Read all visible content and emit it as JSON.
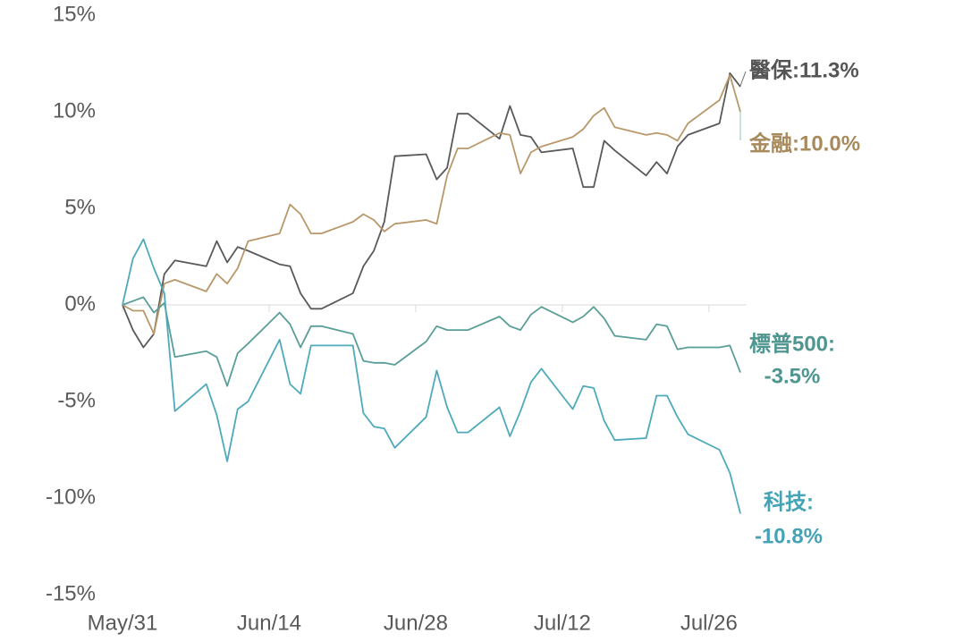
{
  "chart_data": {
    "type": "line",
    "x": [
      0,
      1,
      2,
      3,
      4,
      5,
      8,
      9,
      10,
      11,
      12,
      15,
      16,
      17,
      18,
      19,
      22,
      23,
      24,
      25,
      26,
      29,
      30,
      31,
      32,
      33,
      36,
      37,
      38,
      39,
      40,
      43,
      44,
      45,
      46,
      47,
      50,
      51,
      52,
      53,
      54,
      57,
      58,
      59
    ],
    "xlim": [
      0,
      59
    ],
    "xticks": [
      {
        "value": 0,
        "label": "May/31"
      },
      {
        "value": 14,
        "label": "Jun/14"
      },
      {
        "value": 28,
        "label": "Jun/28"
      },
      {
        "value": 42,
        "label": "Jul/12"
      },
      {
        "value": 56,
        "label": "Jul/26"
      }
    ],
    "ylim": [
      -15,
      15
    ],
    "yticks": [
      {
        "value": -15,
        "label": "-15%"
      },
      {
        "value": -10,
        "label": "-10%"
      },
      {
        "value": -5,
        "label": "-5%"
      },
      {
        "value": 0,
        "label": "0%"
      },
      {
        "value": 5,
        "label": "5%"
      },
      {
        "value": 10,
        "label": "10%"
      },
      {
        "value": 15,
        "label": "15%"
      }
    ],
    "series": [
      {
        "name": "醫保",
        "color": "#595959",
        "values": [
          0,
          -1.3,
          -2.2,
          -1.5,
          1.6,
          2.3,
          2.0,
          3.3,
          2.2,
          3.0,
          2.8,
          2.1,
          2.0,
          0.6,
          -0.2,
          -0.2,
          0.6,
          2.0,
          2.8,
          4.3,
          7.7,
          7.8,
          6.5,
          7.1,
          9.9,
          9.9,
          8.6,
          10.3,
          8.8,
          8.7,
          7.9,
          8.1,
          6.1,
          6.1,
          8.5,
          8.0,
          6.7,
          7.4,
          6.8,
          8.2,
          8.8,
          9.4,
          12.0,
          11.3
        ]
      },
      {
        "name": "金融",
        "color": "#b8986a",
        "values": [
          0,
          -0.3,
          -0.3,
          -1.5,
          1.1,
          1.3,
          0.7,
          1.6,
          1.1,
          1.9,
          3.3,
          3.7,
          5.2,
          4.7,
          3.7,
          3.7,
          4.3,
          4.7,
          4.4,
          3.8,
          4.2,
          4.4,
          4.2,
          6.7,
          8.1,
          8.1,
          8.9,
          8.8,
          6.8,
          7.9,
          8.2,
          8.7,
          9.1,
          9.8,
          10.2,
          9.2,
          8.8,
          8.9,
          8.8,
          8.5,
          9.4,
          10.6,
          11.9,
          10.0
        ]
      },
      {
        "name": "標普500",
        "color": "#5a9e98",
        "values": [
          0,
          0.2,
          0.4,
          -0.4,
          0.1,
          -2.7,
          -2.4,
          -2.7,
          -4.2,
          -2.5,
          -2.0,
          -0.4,
          -1.0,
          -2.2,
          -1.1,
          -1.1,
          -1.5,
          -2.9,
          -3.0,
          -3.0,
          -3.1,
          -1.9,
          -1.1,
          -1.3,
          -1.3,
          -1.3,
          -0.6,
          -1.1,
          -1.3,
          -0.5,
          -0.1,
          -0.9,
          -0.6,
          -0.1,
          -0.7,
          -1.6,
          -1.8,
          -1.0,
          -1.1,
          -2.3,
          -2.2,
          -2.2,
          -2.1,
          -3.5
        ]
      },
      {
        "name": "科技",
        "color": "#4eaabb",
        "values": [
          0,
          2.4,
          3.4,
          1.9,
          0.6,
          -5.5,
          -4.1,
          -5.7,
          -8.1,
          -5.4,
          -5.0,
          -1.8,
          -4.1,
          -4.6,
          -2.1,
          -2.1,
          -2.1,
          -5.6,
          -6.3,
          -6.4,
          -7.4,
          -5.8,
          -3.4,
          -5.3,
          -6.6,
          -6.6,
          -5.3,
          -6.8,
          -5.5,
          -4.0,
          -3.3,
          -5.4,
          -4.2,
          -4.3,
          -6.0,
          -7.0,
          -6.9,
          -4.7,
          -4.7,
          -5.8,
          -6.7,
          -7.5,
          -8.7,
          -10.8
        ]
      }
    ],
    "annotations": [
      {
        "text": "醫保:11.3%",
        "color": "#555555"
      },
      {
        "text": "金融:10.0%",
        "color": "#a88a5c"
      },
      {
        "text": "標普500:",
        "color": "#4f9690"
      },
      {
        "text": "-3.5%",
        "color": "#4f9690"
      },
      {
        "text": "科技:",
        "color": "#45a3b5"
      },
      {
        "text": "-10.8%",
        "color": "#45a3b5"
      }
    ]
  }
}
